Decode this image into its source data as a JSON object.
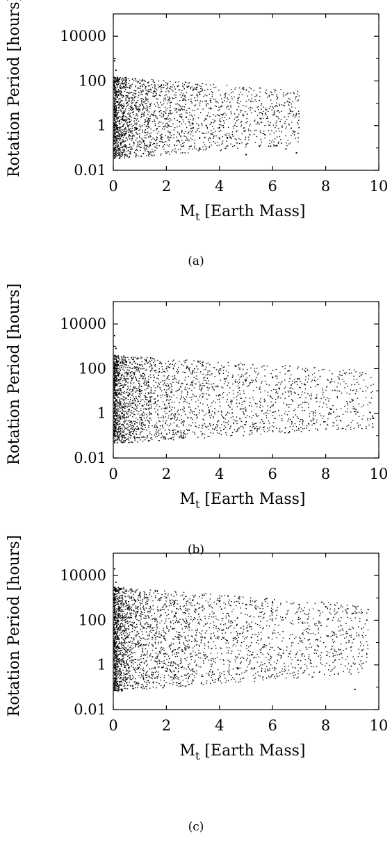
{
  "chart_data": [
    {
      "type": "scatter",
      "panel": "a",
      "caption": "(a)",
      "xlabel_main": "M",
      "xlabel_sub": "t",
      "xlabel_rest": " [Earth Mass]",
      "ylabel": "Rotation Period [hours]",
      "xlim": [
        0,
        10
      ],
      "ylim": [
        0.01,
        100000
      ],
      "yscale": "log",
      "xticks": [
        0,
        2,
        4,
        6,
        8,
        10
      ],
      "yticks": [
        0.01,
        1,
        100,
        10000
      ],
      "ytick_labels": [
        "0.01",
        "1",
        "100",
        "10000"
      ],
      "grid": false,
      "cloud": {
        "count": 2600,
        "xmax": 7.0,
        "ymax_log": 2.2,
        "ymin_log": -1.5,
        "seed": 11
      },
      "series": [
        {
          "x": [
            0.05,
            0.1,
            0.15,
            0.3,
            0.5,
            1.0,
            1.5,
            2.0,
            2.5,
            3.0,
            3.5,
            4.0,
            4.4,
            5.0,
            5.5,
            6.5,
            6.9
          ],
          "y": [
            800,
            300,
            100,
            30,
            10,
            5,
            3,
            2,
            1.5,
            1.2,
            1,
            0.8,
            0.3,
            0.05,
            0.12,
            0.09,
            0.06
          ]
        }
      ]
    },
    {
      "type": "scatter",
      "panel": "b",
      "caption": "(b)",
      "xlabel_main": "M",
      "xlabel_sub": "t",
      "xlabel_rest": " [Earth Mass]",
      "ylabel": "Rotation Period [hours]",
      "xlim": [
        0,
        10
      ],
      "ylim": [
        0.01,
        100000
      ],
      "yscale": "log",
      "xticks": [
        0,
        2,
        4,
        6,
        8,
        10
      ],
      "yticks": [
        0.01,
        1,
        100,
        10000
      ],
      "ytick_labels": [
        "0.01",
        "1",
        "100",
        "10000"
      ],
      "grid": false,
      "cloud": {
        "count": 3000,
        "xmax": 9.8,
        "ymax_log": 2.6,
        "ymin_log": -1.35,
        "seed": 23
      },
      "series": [
        {
          "x": [
            0.05,
            0.1,
            0.5,
            1.0,
            2.0,
            3.0,
            4.0,
            5.0,
            6.0,
            7.0,
            7.2,
            8.2,
            9.1,
            9.8
          ],
          "y": [
            3000,
            800,
            200,
            150,
            100,
            80,
            60,
            30,
            40,
            35,
            20,
            1.5,
            1.2,
            0.6
          ]
        }
      ]
    },
    {
      "type": "scatter",
      "panel": "c",
      "caption": "(c)",
      "xlabel_main": "M",
      "xlabel_sub": "t",
      "xlabel_rest": " [Earth Mass]",
      "ylabel": "Rotation Period [hours]",
      "xlim": [
        0,
        10
      ],
      "ylim": [
        0.01,
        100000
      ],
      "yscale": "log",
      "xticks": [
        0,
        2,
        4,
        6,
        8,
        10
      ],
      "yticks": [
        0.01,
        1,
        100,
        10000
      ],
      "ytick_labels": [
        "0.01",
        "1",
        "100",
        "10000"
      ],
      "grid": false,
      "cloud": {
        "count": 3400,
        "xmax": 9.6,
        "ymax_log": 3.5,
        "ymin_log": -1.2,
        "seed": 37
      },
      "series": [
        {
          "x": [
            0.05,
            0.1,
            0.5,
            1.0,
            2.0,
            3.0,
            4.0,
            5.0,
            6.0,
            7.0,
            8.0,
            9.0,
            9.1,
            9.6
          ],
          "y": [
            20000,
            5000,
            2000,
            1500,
            1000,
            800,
            700,
            500,
            600,
            500,
            400,
            200,
            0.08,
            300
          ]
        }
      ]
    }
  ]
}
